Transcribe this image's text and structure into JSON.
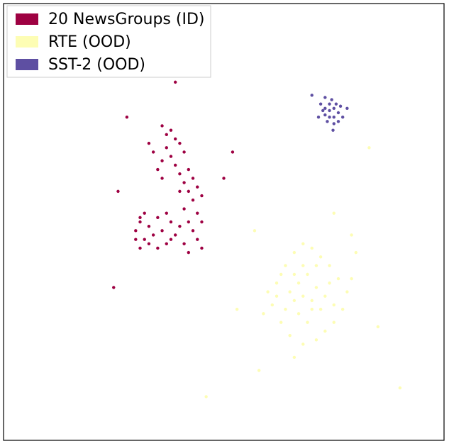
{
  "chart_data": {
    "type": "scatter",
    "xlim": [
      0,
      100
    ],
    "ylim": [
      0,
      100
    ],
    "legend": "upper left",
    "series": [
      {
        "name": "20 NewsGroups (ID)",
        "color": "#9e0142",
        "x": [
          36,
          37,
          38,
          39,
          40,
          37,
          38,
          41,
          39,
          40,
          42,
          41,
          43,
          42,
          44,
          40,
          43,
          45,
          41,
          44,
          42,
          45,
          43,
          40,
          44,
          41,
          42,
          45,
          38,
          36,
          35,
          34,
          33,
          36,
          30,
          31,
          32,
          33,
          34,
          35,
          36,
          37,
          38,
          33,
          31,
          35,
          39,
          37,
          30,
          32,
          28,
          26,
          25,
          39,
          52,
          50,
          31
        ],
        "y": [
          72,
          70,
          71,
          69,
          68,
          67,
          65,
          66,
          63,
          61,
          62,
          59,
          60,
          57,
          58,
          57,
          55,
          56,
          53,
          52,
          50,
          50,
          48,
          49,
          46,
          45,
          43,
          44,
          46,
          60,
          62,
          66,
          68,
          64,
          48,
          50,
          46,
          49,
          47,
          51,
          48,
          45,
          50,
          45,
          44,
          44,
          47,
          52,
          46,
          52,
          74,
          57,
          35,
          82,
          66,
          60,
          51
        ]
      },
      {
        "name": "RTE (OOD)",
        "color": "#fdfdb4",
        "x": [
          62,
          64,
          66,
          68,
          70,
          72,
          74,
          76,
          78,
          77,
          75,
          73,
          71,
          68,
          65,
          63,
          61,
          60,
          65,
          67,
          69,
          71,
          73,
          70,
          67,
          66,
          68,
          70,
          72,
          69,
          64,
          74,
          63,
          71,
          66,
          75,
          68,
          62,
          79,
          59,
          80,
          66,
          85,
          57,
          75,
          83,
          53,
          90,
          46,
          58,
          79
        ],
        "y": [
          36,
          40,
          43,
          45,
          44,
          42,
          40,
          37,
          34,
          30,
          27,
          25,
          23,
          22,
          24,
          27,
          31,
          34,
          34,
          36,
          38,
          35,
          33,
          30,
          29,
          32,
          33,
          32,
          30,
          27,
          30,
          36,
          38,
          40,
          38,
          31,
          40,
          33,
          37,
          29,
          43,
          19,
          26,
          48,
          52,
          67,
          30,
          12,
          10,
          16,
          47
        ]
      },
      {
        "name": "SST-2 (OOD)",
        "color": "#5e4fa2",
        "x": [
          73,
          74,
          75,
          76,
          74,
          73,
          75,
          75.5,
          72.5,
          76.5,
          74.5,
          73.5,
          75,
          72,
          77,
          74,
          73,
          76,
          71.5,
          78,
          70,
          74.8
        ],
        "y": [
          76,
          77,
          76,
          75,
          74,
          74.5,
          74,
          77,
          75.5,
          76.5,
          78,
          73,
          72.5,
          77,
          74,
          75.5,
          78.5,
          73,
          74,
          76,
          79,
          71
        ]
      }
    ]
  }
}
